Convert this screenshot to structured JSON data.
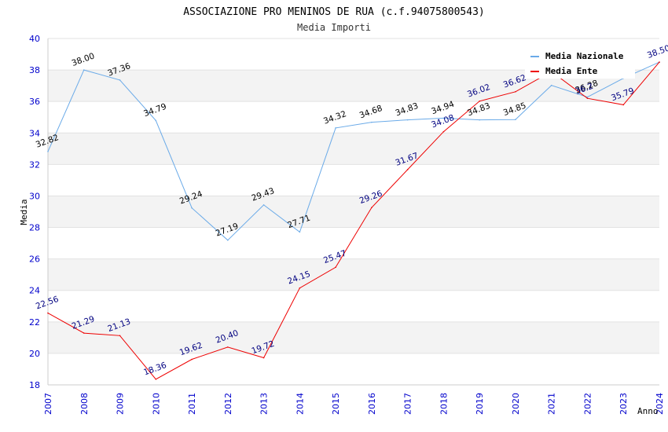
{
  "chart_data": {
    "type": "line",
    "title": "ASSOCIAZIONE PRO MENINOS DE RUA (c.f.94075800543)",
    "subtitle": "Media Importi",
    "xlabel": "Anno",
    "ylabel": "Media",
    "x": [
      "2007",
      "2008",
      "2009",
      "2010",
      "2011",
      "2012",
      "2013",
      "2014",
      "2015",
      "2016",
      "2017",
      "2018",
      "2019",
      "2020",
      "2021",
      "2022",
      "2023",
      "2024"
    ],
    "ylim": [
      18,
      40
    ],
    "yticks": [
      18,
      20,
      22,
      24,
      26,
      28,
      30,
      32,
      34,
      36,
      38,
      40
    ],
    "grid": true,
    "legend_position": "top-right",
    "series": [
      {
        "name": "Media Nazionale",
        "color": "#6aaae8",
        "label_color": "#000000",
        "values": [
          32.82,
          38.0,
          37.36,
          34.79,
          29.24,
          27.19,
          29.43,
          27.71,
          34.32,
          34.68,
          34.83,
          34.94,
          34.83,
          34.85,
          37.02,
          36.28,
          37.47,
          38.5
        ],
        "labels": [
          "32.82",
          "38.00",
          "37.36",
          "34.79",
          "29.24",
          "27.19",
          "29.43",
          "27.71",
          "34.32",
          "34.68",
          "34.83",
          "34.94",
          "34.83",
          "34.85",
          "",
          "36.28",
          "",
          ""
        ]
      },
      {
        "name": "Media Ente",
        "color": "#ee0000",
        "label_color": "#000080",
        "values": [
          22.56,
          21.29,
          21.13,
          18.36,
          19.62,
          20.4,
          19.72,
          24.15,
          25.47,
          29.26,
          31.67,
          34.08,
          36.02,
          36.62,
          37.9,
          36.2,
          35.79,
          38.5
        ],
        "labels": [
          "22.56",
          "21.29",
          "21.13",
          "18.36",
          "19.62",
          "20.40",
          "19.72",
          "24.15",
          "25.47",
          "29.26",
          "31.67",
          "34.08",
          "36.02",
          "36.62",
          "",
          "36.2",
          "35.79",
          "38.50"
        ]
      }
    ]
  }
}
